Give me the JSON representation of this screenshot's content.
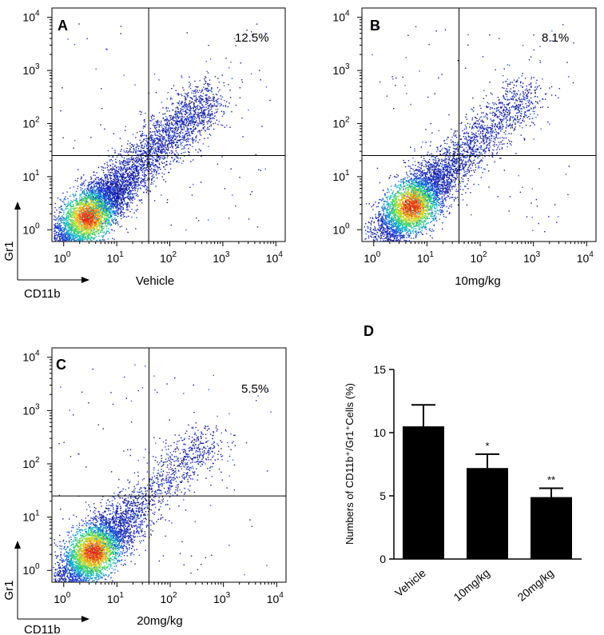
{
  "colors": {
    "axis": "#000000",
    "bar": "#000000",
    "density_low": "#1a1aa8",
    "density_mid": "#18c8c8",
    "density_high": "#e03010"
  },
  "chart_data": [
    {
      "type": "scatter",
      "panel_label": "A",
      "xlabel": "Vehicle",
      "ylabel": "Gr1",
      "corner_xlabel": "CD11b",
      "x_scale": "log",
      "y_scale": "log",
      "xlim": [
        0.6,
        15000
      ],
      "ylim": [
        0.6,
        15000
      ],
      "x_ticks": [
        {
          "b": "10",
          "e": "0"
        },
        {
          "b": "10",
          "e": "1"
        },
        {
          "b": "10",
          "e": "2"
        },
        {
          "b": "10",
          "e": "3"
        },
        {
          "b": "10",
          "e": "4"
        }
      ],
      "y_ticks": [
        {
          "b": "10",
          "e": "0"
        },
        {
          "b": "10",
          "e": "1"
        },
        {
          "b": "10",
          "e": "2"
        },
        {
          "b": "10",
          "e": "3"
        },
        {
          "b": "10",
          "e": "4"
        }
      ],
      "gate": {
        "x": 40,
        "y": 25
      },
      "gate_percent": "12.5%",
      "show_corner_axes": true
    },
    {
      "type": "scatter",
      "panel_label": "B",
      "xlabel": "10mg/kg",
      "x_scale": "log",
      "y_scale": "log",
      "xlim": [
        0.6,
        15000
      ],
      "ylim": [
        0.6,
        15000
      ],
      "x_ticks": [
        {
          "b": "10",
          "e": "0"
        },
        {
          "b": "10",
          "e": "1"
        },
        {
          "b": "10",
          "e": "2"
        },
        {
          "b": "10",
          "e": "3"
        },
        {
          "b": "10",
          "e": "4"
        }
      ],
      "y_ticks": [
        {
          "b": "10",
          "e": "0"
        },
        {
          "b": "10",
          "e": "1"
        },
        {
          "b": "10",
          "e": "2"
        },
        {
          "b": "10",
          "e": "3"
        },
        {
          "b": "10",
          "e": "4"
        }
      ],
      "gate": {
        "x": 40,
        "y": 25
      },
      "gate_percent": "8.1%",
      "show_corner_axes": false
    },
    {
      "type": "scatter",
      "panel_label": "C",
      "xlabel": "20mg/kg",
      "ylabel": "Gr1",
      "corner_xlabel": "CD11b",
      "x_scale": "log",
      "y_scale": "log",
      "xlim": [
        0.6,
        15000
      ],
      "ylim": [
        0.6,
        15000
      ],
      "x_ticks": [
        {
          "b": "10",
          "e": "0"
        },
        {
          "b": "10",
          "e": "1"
        },
        {
          "b": "10",
          "e": "2"
        },
        {
          "b": "10",
          "e": "3"
        },
        {
          "b": "10",
          "e": "4"
        }
      ],
      "y_ticks": [
        {
          "b": "10",
          "e": "0"
        },
        {
          "b": "10",
          "e": "1"
        },
        {
          "b": "10",
          "e": "2"
        },
        {
          "b": "10",
          "e": "3"
        },
        {
          "b": "10",
          "e": "4"
        }
      ],
      "gate": {
        "x": 40,
        "y": 25
      },
      "gate_percent": "5.5%",
      "show_corner_axes": true
    },
    {
      "type": "bar",
      "panel_label": "D",
      "ylabel": "Numbers of CD11b⁺/Gr1⁺Cells (%)",
      "ylim": [
        0,
        15
      ],
      "y_ticks": [
        "0",
        "5",
        "10",
        "15"
      ],
      "categories": [
        "Vehicle",
        "10mg/kg",
        "20mg/kg"
      ],
      "values": [
        10.5,
        7.2,
        4.9
      ],
      "errors": [
        1.7,
        1.1,
        0.7
      ],
      "significance": [
        "",
        "*",
        "**"
      ]
    }
  ]
}
